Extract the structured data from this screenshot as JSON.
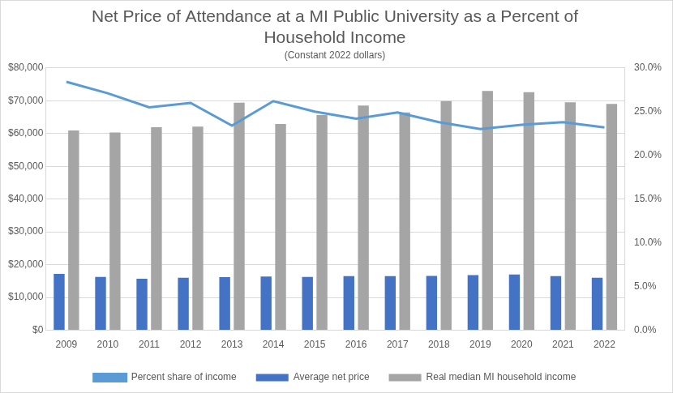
{
  "chart_data": {
    "type": "bar",
    "title": "Net Price of Attendance at a MI Public University as a Percent of Household Income",
    "subtitle": "(Constant 2022 dollars)",
    "categories": [
      "2009",
      "2010",
      "2011",
      "2012",
      "2013",
      "2014",
      "2015",
      "2016",
      "2017",
      "2018",
      "2019",
      "2020",
      "2021",
      "2022"
    ],
    "series": [
      {
        "name": "Average net price",
        "type": "bar",
        "color": "#4472c4",
        "values": [
          17200,
          16300,
          15700,
          16000,
          16200,
          16400,
          16300,
          16500,
          16500,
          16600,
          16800,
          17000,
          16500,
          16000
        ]
      },
      {
        "name": "Real median MI household income",
        "type": "bar",
        "color": "#a5a5a5",
        "values": [
          60900,
          60300,
          61900,
          62100,
          69400,
          62900,
          65600,
          68500,
          66400,
          69900,
          73000,
          72600,
          69500,
          69000
        ]
      },
      {
        "name": "Percent share of income",
        "type": "line",
        "color": "#5b9bd5",
        "axis": "y2",
        "values": [
          28.4,
          27.1,
          25.5,
          26.0,
          23.4,
          26.2,
          25.0,
          24.2,
          24.9,
          23.8,
          23.0,
          23.5,
          23.8,
          23.2
        ]
      }
    ],
    "ylim": [
      0,
      80000
    ],
    "yticks": [
      {
        "value": 0,
        "label": "$0"
      },
      {
        "value": 10000,
        "label": "$10,000"
      },
      {
        "value": 20000,
        "label": "$20,000"
      },
      {
        "value": 30000,
        "label": "$30,000"
      },
      {
        "value": 40000,
        "label": "$40,000"
      },
      {
        "value": 50000,
        "label": "$50,000"
      },
      {
        "value": 60000,
        "label": "$60,000"
      },
      {
        "value": 70000,
        "label": "$70,000"
      },
      {
        "value": 80000,
        "label": "$80,000"
      }
    ],
    "y2lim": [
      0,
      30
    ],
    "y2ticks": [
      {
        "value": 0,
        "label": "0.0%"
      },
      {
        "value": 5,
        "label": "5.0%"
      },
      {
        "value": 10,
        "label": "10.0%"
      },
      {
        "value": 15,
        "label": "15.0%"
      },
      {
        "value": 20,
        "label": "20.0%"
      },
      {
        "value": 25,
        "label": "25.0%"
      },
      {
        "value": 30,
        "label": "30.0%"
      }
    ],
    "grid": true,
    "legend": "bottom"
  }
}
